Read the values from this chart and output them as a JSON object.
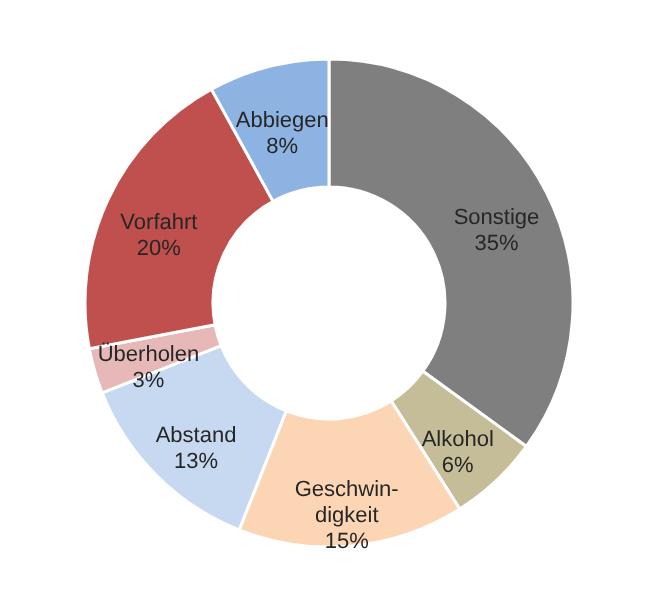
{
  "chart_data": {
    "type": "donut",
    "categories": [
      "Sonstige",
      "Alkohol",
      "Geschwin-\ndigkeit",
      "Abstand",
      "Überholen",
      "Vorfahrt",
      "Abbiegen"
    ],
    "values": [
      35,
      6,
      15,
      13,
      3,
      20,
      8
    ],
    "value_labels": [
      "35%",
      "6%",
      "15%",
      "13%",
      "3%",
      "20%",
      "8%"
    ],
    "colors": [
      "#7f7f7f",
      "#c4bd97",
      "#fcd5b5",
      "#c6d9f1",
      "#e6b9b8",
      "#c0504d",
      "#8db3e2"
    ]
  }
}
